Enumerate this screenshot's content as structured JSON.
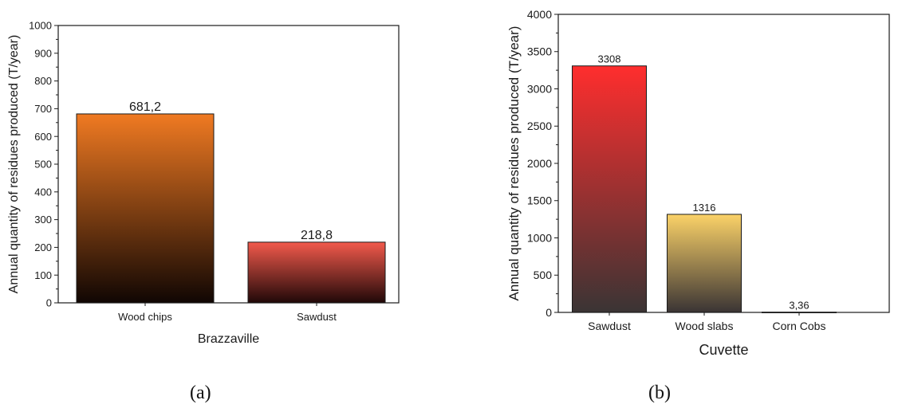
{
  "chart_data": [
    {
      "type": "bar",
      "xlabel": "Brazzaville",
      "ylabel": "Annual quantity of residues produced (T/year)",
      "categories": [
        "Wood chips",
        "Sawdust"
      ],
      "values": [
        681.2,
        218.8
      ],
      "value_labels": [
        "681,2",
        "218,8"
      ],
      "ylim": [
        0,
        1000
      ],
      "yticks": [
        0,
        100,
        200,
        300,
        400,
        500,
        600,
        700,
        800,
        900,
        1000
      ],
      "grid": false,
      "bar_colors": [
        [
          "#f07a22",
          "#100603"
        ],
        [
          "#f25a4c",
          "#200808"
        ]
      ]
    },
    {
      "type": "bar",
      "xlabel": "Cuvette",
      "ylabel": "Annual quantity of residues produced (T/year)",
      "categories": [
        "Sawdust",
        "Wood slabs",
        "Corn Cobs"
      ],
      "values": [
        3308,
        1316,
        3.36
      ],
      "value_labels": [
        "3308",
        "1316",
        "3,36"
      ],
      "ylim": [
        0,
        4000
      ],
      "yticks": [
        0,
        500,
        1000,
        1500,
        2000,
        2500,
        3000,
        3500,
        4000
      ],
      "grid": false,
      "bar_colors": [
        [
          "#ff2e2e",
          "#3a3434"
        ],
        [
          "#fbd268",
          "#3a3434"
        ],
        [
          "#e8c060",
          "#3a3434"
        ]
      ]
    }
  ],
  "panel_labels": [
    "(a)",
    "(b)"
  ]
}
